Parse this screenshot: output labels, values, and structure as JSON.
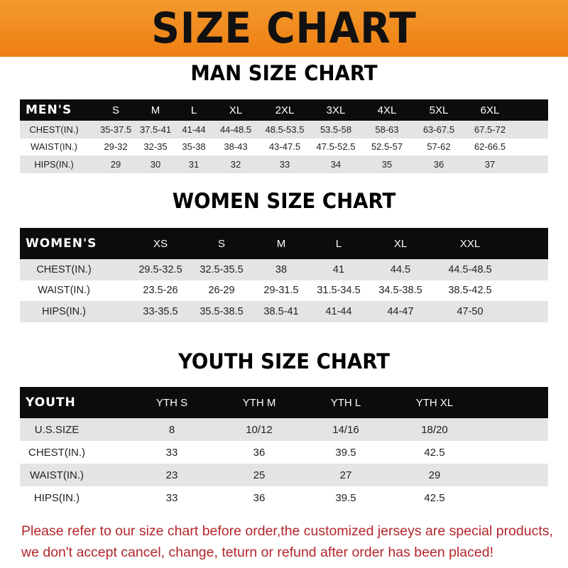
{
  "banner": {
    "title": "SIZE CHART",
    "color": "#ee7e12"
  },
  "men": {
    "title": "MAN SIZE CHART",
    "header": [
      "MEN'S",
      "S",
      "M",
      "L",
      "XL",
      "2XL",
      "3XL",
      "4XL",
      "5XL",
      "6XL"
    ],
    "rows": [
      [
        "CHEST(IN.)",
        "35-37.5",
        "37.5-41",
        "41-44",
        "44-48.5",
        "48.5-53.5",
        "53.5-58",
        "58-63",
        "63-67.5",
        "67.5-72"
      ],
      [
        "WAIST(IN.)",
        "29-32",
        "32-35",
        "35-38",
        "38-43",
        "43-47.5",
        "47.5-52.5",
        "52.5-57",
        "57-62",
        "62-66.5"
      ],
      [
        "HIPS(IN.)",
        "29",
        "30",
        "31",
        "32",
        "33",
        "34",
        "35",
        "36",
        "37"
      ]
    ]
  },
  "women": {
    "title": "WOMEN SIZE CHART",
    "header": [
      "WOMEN'S",
      "XS",
      "S",
      "M",
      "L",
      "XL",
      "XXL"
    ],
    "rows": [
      [
        "CHEST(IN.)",
        "29.5-32.5",
        "32.5-35.5",
        "38",
        "41",
        "44.5",
        "44.5-48.5"
      ],
      [
        "WAIST(IN.)",
        "23.5-26",
        "26-29",
        "29-31.5",
        "31.5-34.5",
        "34.5-38.5",
        "38.5-42.5"
      ],
      [
        "HIPS(IN.)",
        "33-35.5",
        "35.5-38.5",
        "38.5-41",
        "41-44",
        "44-47",
        "47-50"
      ]
    ]
  },
  "youth": {
    "title": "YOUTH SIZE CHART",
    "header": [
      "YOUTH",
      "YTH S",
      "YTH M",
      "YTH L",
      "YTH XL"
    ],
    "rows": [
      [
        "U.S.SIZE",
        "8",
        "10/12",
        "14/16",
        "18/20"
      ],
      [
        "CHEST(IN.)",
        "33",
        "36",
        "39.5",
        "42.5"
      ],
      [
        "WAIST(IN.)",
        "23",
        "25",
        "27",
        "29"
      ],
      [
        "HIPS(IN.)",
        "33",
        "36",
        "39.5",
        "42.5"
      ]
    ]
  },
  "note": {
    "line1": "Please refer to our size chart before order,the customized jerseys are special products,",
    "line2": "we don't accept cancel, change, teturn or refund after order has been placed!",
    "color": "#b3262a"
  }
}
